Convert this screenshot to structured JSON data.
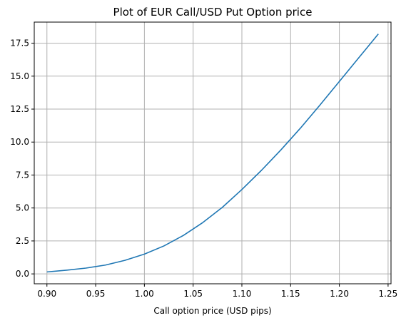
{
  "chart_data": {
    "type": "line",
    "title": "Plot of EUR Call/USD Put Option price",
    "xlabel": "Call option price (USD pips)",
    "ylabel": "",
    "xlim": [
      0.887,
      1.253
    ],
    "ylim": [
      -0.75,
      19.1
    ],
    "grid": true,
    "x_ticks": [
      0.9,
      0.95,
      1.0,
      1.05,
      1.1,
      1.15,
      1.2,
      1.25
    ],
    "x_tick_labels": [
      "0.90",
      "0.95",
      "1.00",
      "1.05",
      "1.10",
      "1.15",
      "1.20",
      "1.25"
    ],
    "y_ticks": [
      0.0,
      2.5,
      5.0,
      7.5,
      10.0,
      12.5,
      15.0,
      17.5
    ],
    "y_tick_labels": [
      "0.0",
      "2.5",
      "5.0",
      "7.5",
      "10.0",
      "12.5",
      "15.0",
      "17.5"
    ],
    "series": [
      {
        "color": "#1f77b4",
        "x": [
          0.9,
          0.92,
          0.94,
          0.96,
          0.98,
          1.0,
          1.02,
          1.04,
          1.06,
          1.08,
          1.1,
          1.12,
          1.14,
          1.16,
          1.18,
          1.2,
          1.22,
          1.24
        ],
        "y": [
          0.15,
          0.28,
          0.44,
          0.67,
          1.03,
          1.5,
          2.12,
          2.92,
          3.9,
          5.05,
          6.4,
          7.85,
          9.4,
          11.05,
          12.8,
          14.6,
          16.4,
          18.2
        ]
      }
    ]
  }
}
